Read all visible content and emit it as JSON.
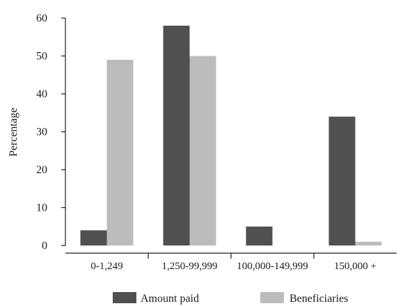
{
  "chart_data": {
    "type": "bar",
    "categories": [
      "0-1,249",
      "1,250-99,999",
      "100,000-149,999",
      "150,000 +"
    ],
    "series": [
      {
        "name": "Amount paid",
        "values": [
          4,
          58,
          5,
          34
        ],
        "color": "#505050"
      },
      {
        "name": "Beneficiaries",
        "values": [
          49,
          50,
          0,
          1
        ],
        "color": "#bcbcbf"
      }
    ],
    "title": "",
    "xlabel": "",
    "ylabel": "Percentage",
    "ylim": [
      0,
      60
    ],
    "yticks": [
      0,
      10,
      20,
      30,
      40,
      50,
      60
    ],
    "grid": false,
    "legend_position": "bottom"
  }
}
